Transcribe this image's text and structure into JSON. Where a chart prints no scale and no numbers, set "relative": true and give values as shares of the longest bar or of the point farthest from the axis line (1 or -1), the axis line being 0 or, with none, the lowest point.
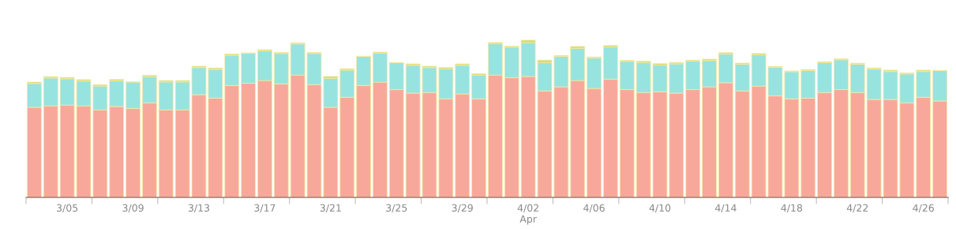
{
  "chart_data": {
    "type": "bar",
    "stacked": true,
    "relative": true,
    "categories": [
      null,
      null,
      "3/05",
      null,
      null,
      null,
      "3/09",
      null,
      null,
      null,
      "3/13",
      null,
      null,
      null,
      "3/17",
      null,
      null,
      null,
      "3/21",
      null,
      null,
      null,
      "3/25",
      null,
      null,
      null,
      "3/29",
      null,
      null,
      null,
      "4/02\nApr",
      null,
      null,
      null,
      "4/06",
      null,
      null,
      null,
      "4/10",
      null,
      null,
      null,
      "4/14",
      null,
      null,
      null,
      "4/18",
      null,
      null,
      null,
      "4/22",
      null,
      null,
      null,
      "4/26",
      null
    ],
    "series": [
      {
        "color": "#f8a89a",
        "values": [
          0.573,
          0.582,
          0.587,
          0.582,
          0.557,
          0.578,
          0.566,
          0.601,
          0.557,
          0.557,
          0.653,
          0.632,
          0.712,
          0.726,
          0.743,
          0.722,
          0.778,
          0.717,
          0.573,
          0.637,
          0.712,
          0.733,
          0.686,
          0.663,
          0.667,
          0.627,
          0.658,
          0.627,
          0.778,
          0.762,
          0.769,
          0.677,
          0.703,
          0.743,
          0.693,
          0.752,
          0.686,
          0.667,
          0.672,
          0.663,
          0.686,
          0.703,
          0.729,
          0.677,
          0.708,
          0.646,
          0.627,
          0.632,
          0.667,
          0.686,
          0.667,
          0.623,
          0.623,
          0.601,
          0.637,
          0.613
        ]
      },
      {
        "color": "#97e3df",
        "values": [
          0.151,
          0.177,
          0.167,
          0.158,
          0.151,
          0.163,
          0.167,
          0.167,
          0.177,
          0.177,
          0.172,
          0.182,
          0.191,
          0.191,
          0.189,
          0.193,
          0.198,
          0.198,
          0.184,
          0.172,
          0.184,
          0.184,
          0.17,
          0.177,
          0.158,
          0.191,
          0.182,
          0.151,
          0.2,
          0.193,
          0.215,
          0.179,
          0.193,
          0.205,
          0.193,
          0.205,
          0.179,
          0.191,
          0.17,
          0.186,
          0.182,
          0.167,
          0.182,
          0.17,
          0.198,
          0.182,
          0.172,
          0.174,
          0.189,
          0.189,
          0.179,
          0.193,
          0.177,
          0.184,
          0.163,
          0.193
        ]
      },
      {
        "color": "#d4dd6a",
        "values": [
          0.009,
          0.009,
          0.009,
          0.009,
          0.009,
          0.009,
          0.002,
          0.009,
          0.009,
          0.009,
          0.009,
          0.009,
          0.009,
          0.002,
          0.007,
          0.007,
          0.007,
          0.007,
          0.012,
          0.009,
          0.002,
          0.007,
          0.002,
          0.009,
          0.009,
          0.009,
          0.009,
          0.009,
          0.007,
          0.007,
          0.016,
          0.017,
          0.007,
          0.012,
          0.007,
          0.009,
          0.007,
          0.009,
          0.009,
          0.009,
          0.005,
          0.009,
          0.009,
          0.007,
          0.009,
          0.005,
          0.005,
          0.007,
          0.007,
          0.007,
          0.007,
          0.007,
          0.009,
          0.007,
          0.009,
          0.002
        ]
      }
    ]
  }
}
